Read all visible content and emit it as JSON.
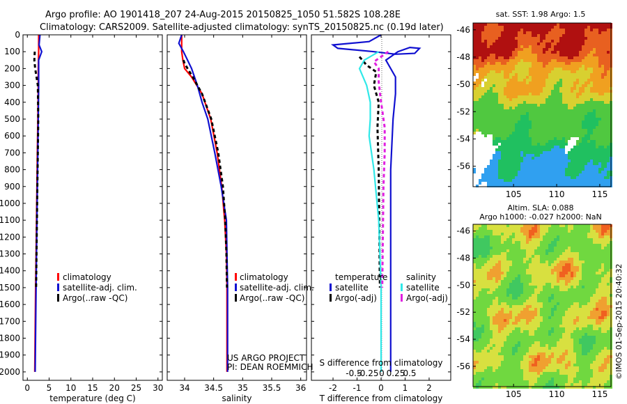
{
  "header": {
    "line1": "Argo profile: AO 1901418_207 24-Aug-2015 20150825_1050 51.582S 108.28E",
    "line2": "Climatology: CARS2009. Satellite-adjusted climatology: synTS_20150825.nc (0.19d later)"
  },
  "chart_data": [
    {
      "type": "line",
      "panel": "temperature",
      "xlabel": "temperature (deg C)",
      "ylabel": "",
      "xlim": [
        -1,
        31
      ],
      "ylim": [
        2050,
        0
      ],
      "xticks": [
        "0",
        "5",
        "10",
        "15",
        "20",
        "25",
        "30"
      ],
      "yticks": [
        "0",
        "100",
        "200",
        "300",
        "400",
        "500",
        "600",
        "700",
        "800",
        "900",
        "1000",
        "1100",
        "1200",
        "1300",
        "1400",
        "1500",
        "1600",
        "1700",
        "1800",
        "1900",
        "2000"
      ],
      "legend": [
        "climatology",
        "satellite-adj. clim.",
        "Argo(..raw -QC)"
      ],
      "series": [
        {
          "name": "climatology",
          "color": "#ff0000",
          "x": [
            2.6,
            2.6,
            2.5,
            2.5,
            2.4,
            2.3,
            2.2,
            2.1,
            2.0,
            1.9,
            1.7
          ],
          "y": [
            0,
            100,
            200,
            300,
            500,
            700,
            900,
            1100,
            1300,
            1500,
            2000
          ]
        },
        {
          "name": "satellite-adj. clim.",
          "color": "#1010d0",
          "x": [
            2.9,
            2.7,
            3.3,
            2.6,
            2.6,
            2.5,
            2.4,
            2.3,
            2.2,
            2.1,
            2.0,
            1.8
          ],
          "y": [
            0,
            60,
            100,
            150,
            300,
            500,
            700,
            900,
            1100,
            1300,
            1500,
            2000
          ]
        },
        {
          "name": "Argo(..raw -QC)",
          "color": "#000000",
          "x": [
            1.7,
            1.6,
            1.8,
            2.1,
            2.4,
            2.5,
            2.4,
            2.3,
            2.2,
            2.1,
            2.0
          ],
          "y": [
            100,
            150,
            200,
            250,
            300,
            500,
            700,
            900,
            1100,
            1300,
            1500
          ]
        }
      ]
    },
    {
      "type": "line",
      "panel": "salinity",
      "xlabel": "salinity",
      "xlim": [
        33.7,
        36.1
      ],
      "ylim": [
        2050,
        0
      ],
      "xticks": [
        "34",
        "34.5",
        "35",
        "35.5",
        "36"
      ],
      "legend": [
        "climatology",
        "satellite-adj. clim.",
        "Argo(..raw -QC)"
      ],
      "series": [
        {
          "name": "climatology",
          "color": "#ff0000",
          "x": [
            33.95,
            33.95,
            33.97,
            34.0,
            34.12,
            34.3,
            34.45,
            34.56,
            34.64,
            34.69,
            34.72,
            34.73,
            34.73,
            34.73
          ],
          "y": [
            0,
            100,
            150,
            200,
            250,
            350,
            500,
            700,
            900,
            1100,
            1300,
            1500,
            1800,
            2000
          ]
        },
        {
          "name": "satellite-adj. clim.",
          "color": "#1010d0",
          "x": [
            33.95,
            33.9,
            33.98,
            34.05,
            34.12,
            34.22,
            34.3,
            34.4,
            34.52,
            34.63,
            34.72,
            34.73,
            34.74,
            34.74,
            34.74
          ],
          "y": [
            0,
            50,
            100,
            150,
            200,
            300,
            400,
            500,
            700,
            900,
            1100,
            1300,
            1500,
            1800,
            2000
          ]
        },
        {
          "name": "Argo(..raw -QC)",
          "color": "#000000",
          "x": [
            33.98,
            34.0,
            34.05,
            34.14,
            34.3,
            34.46,
            34.58,
            34.66,
            34.7,
            34.72,
            34.73
          ],
          "y": [
            150,
            170,
            200,
            250,
            350,
            500,
            700,
            900,
            1100,
            1300,
            1500
          ]
        }
      ]
    },
    {
      "type": "line",
      "panel": "difference",
      "xlabel": "T difference from climatology",
      "xlabel_top": "S difference from climatology",
      "xlim": [
        -2.9,
        2.9
      ],
      "ylim": [
        2050,
        0
      ],
      "xticks": [
        "-2",
        "-1",
        "0",
        "1",
        "2"
      ],
      "xticks_top": [
        "-0.5",
        "-0.25",
        "0",
        "0.25",
        "0.5"
      ],
      "legend_headers": [
        "temperature",
        "salinity"
      ],
      "legend": [
        "satellite",
        "Argo(-adj)",
        "satellite",
        "Argo(-adj)"
      ],
      "series": [
        {
          "name": "satellite",
          "color": "#1010d0",
          "x": [
            0,
            -0.5,
            -2.0,
            -1.8,
            -0.3,
            0.6,
            1.4,
            1.6,
            1.2,
            0.7,
            0.2,
            0.6,
            0.6,
            0.5,
            0.4,
            0.4,
            0.4,
            0.4
          ],
          "y": [
            0,
            40,
            60,
            80,
            100,
            115,
            110,
            80,
            75,
            100,
            150,
            250,
            350,
            500,
            800,
            1100,
            1500,
            2000
          ]
        },
        {
          "name": "Argo(-adj)",
          "color": "#000000",
          "x": [
            -0.9,
            -0.6,
            -0.2,
            -0.3,
            -0.1,
            -0.15,
            -0.1,
            -0.05
          ],
          "y": [
            130,
            180,
            220,
            300,
            400,
            550,
            800,
            1500
          ]
        },
        {
          "name": "satellite",
          "color": "#30e8e8",
          "x": [
            -0.1,
            -0.7,
            -0.9,
            -0.6,
            -0.45,
            -0.45,
            -0.5,
            -0.3,
            -0.1,
            0,
            0
          ],
          "y": [
            100,
            150,
            200,
            300,
            400,
            500,
            600,
            800,
            1100,
            1500,
            2000
          ]
        },
        {
          "name": "Argo(-adj)",
          "color": "#e020e0",
          "x": [
            0.3,
            -0.3,
            -0.1,
            -0.1,
            0,
            0.15,
            0.15,
            0.1,
            0.05
          ],
          "y": [
            100,
            160,
            200,
            280,
            400,
            550,
            700,
            900,
            1500
          ]
        }
      ]
    },
    {
      "type": "heatmap",
      "panel": "sst-map",
      "title": "sat. SST: 1.98 Argo: 1.5",
      "xticks": [
        "105",
        "110",
        "115"
      ],
      "yticks": [
        "-46",
        "-48",
        "-50",
        "-52",
        "-54",
        "-56"
      ],
      "xlim": [
        100.3,
        116.3
      ],
      "ylim": [
        -57.5,
        -45.5
      ]
    },
    {
      "type": "heatmap",
      "panel": "sla-map",
      "title": "Altim. SLA: 0.088",
      "subtitle": "Argo h1000: -0.027 h2000: NaN",
      "xticks": [
        "105",
        "110",
        "115"
      ],
      "yticks": [
        "-46",
        "-48",
        "-50",
        "-52",
        "-54",
        "-56"
      ],
      "xlim": [
        100.3,
        116.3
      ],
      "ylim": [
        -57.5,
        -45.5
      ]
    }
  ],
  "annotations": {
    "project_line1": "US ARGO PROJECT",
    "project_line2": "PI: DEAN ROEMMICH",
    "watermark": "©IMOS 01-Sep-2015 20:40:32"
  }
}
